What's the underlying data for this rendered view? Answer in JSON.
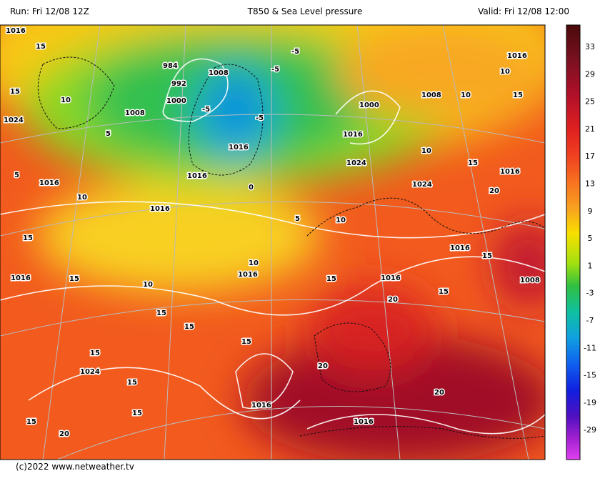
{
  "header": {
    "run": "Run: Fri 12/08 12Z",
    "title": "T850 & Sea Level pressure",
    "valid": "Valid: Fri 12/08 12:00"
  },
  "footer": {
    "credit": "(c)2022 www.netweather.tv"
  },
  "colorbar": {
    "labels": [
      "33",
      "29",
      "25",
      "21",
      "17",
      "13",
      "9",
      "5",
      "1",
      "-3",
      "-7",
      "-11",
      "-15",
      "-19",
      "-29"
    ]
  },
  "map": {
    "contour_labels": [
      "1016",
      "15",
      "15",
      "10",
      "1024",
      "1008",
      "5",
      "5",
      "1016",
      "10",
      "984",
      "992",
      "1000",
      "1008",
      "-5",
      "-5",
      "-5",
      "-5",
      "1016",
      "1016",
      "0",
      "1000",
      "1016",
      "1024",
      "1016",
      "10",
      "1008",
      "10",
      "15",
      "10",
      "1024",
      "15",
      "1016",
      "20",
      "1016",
      "15",
      "1016",
      "15",
      "10",
      "1016",
      "10",
      "15",
      "1016",
      "1016",
      "15",
      "1008",
      "20",
      "15",
      "15",
      "15",
      "15",
      "15",
      "1024",
      "15",
      "20",
      "1016",
      "15",
      "15",
      "20",
      "1016",
      "20",
      "10",
      "5"
    ]
  }
}
